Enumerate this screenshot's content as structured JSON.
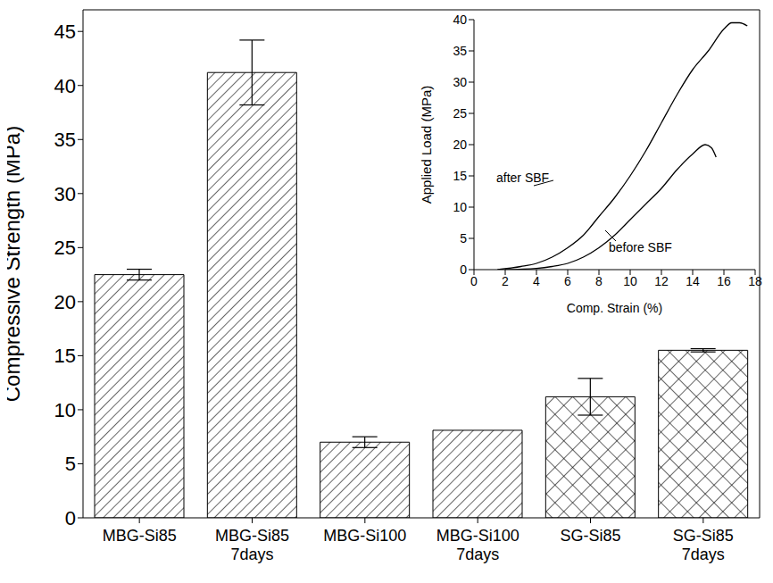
{
  "chart_data": [
    {
      "type": "bar",
      "y_label": "Compressive Strength (MPa)",
      "categories": [
        "MBG-Si85",
        "MBG-Si85 7days",
        "MBG-Si100",
        "MBG-Si100 7days",
        "SG-Si85",
        "SG-Si85 7days"
      ],
      "values": [
        22.5,
        41.2,
        7.0,
        8.1,
        11.2,
        15.5
      ],
      "errors": [
        0.5,
        3.0,
        0.5,
        null,
        1.7,
        0.15
      ],
      "ylim": [
        0,
        47
      ],
      "yticks": [
        0,
        5,
        10,
        15,
        20,
        25,
        30,
        35,
        40,
        45
      ],
      "color": "#000000"
    },
    {
      "type": "line",
      "x_label": "Comp. Strain (%)",
      "y_label": "Applied Load (MPa)",
      "xlim": [
        0,
        18
      ],
      "xticks": [
        0,
        2,
        4,
        6,
        8,
        10,
        12,
        14,
        16,
        18
      ],
      "ylim": [
        0,
        40
      ],
      "yticks": [
        0,
        5,
        10,
        15,
        20,
        25,
        30,
        35,
        40
      ],
      "series": [
        {
          "name": "after SBF",
          "color": "#000000",
          "x": [
            1.5,
            3,
            4,
            5,
            6,
            7,
            8,
            9,
            10,
            11,
            12,
            13,
            14,
            15,
            16,
            16.5,
            17,
            17.5
          ],
          "values": [
            0,
            0.5,
            1,
            2,
            3.5,
            5.5,
            8.5,
            11.5,
            15,
            19,
            23.5,
            28,
            32,
            35,
            38.5,
            39.5,
            39.5,
            39
          ]
        },
        {
          "name": "before SBF",
          "color": "#000000",
          "x": [
            2,
            4,
            5,
            6,
            7,
            8,
            9,
            10,
            11,
            12,
            13,
            14,
            14.8,
            15.2,
            15.5
          ],
          "values": [
            0,
            0.2,
            0.5,
            1,
            2,
            3.5,
            5.5,
            8,
            10.5,
            13,
            16,
            18.5,
            20,
            19.5,
            18
          ]
        }
      ]
    }
  ]
}
